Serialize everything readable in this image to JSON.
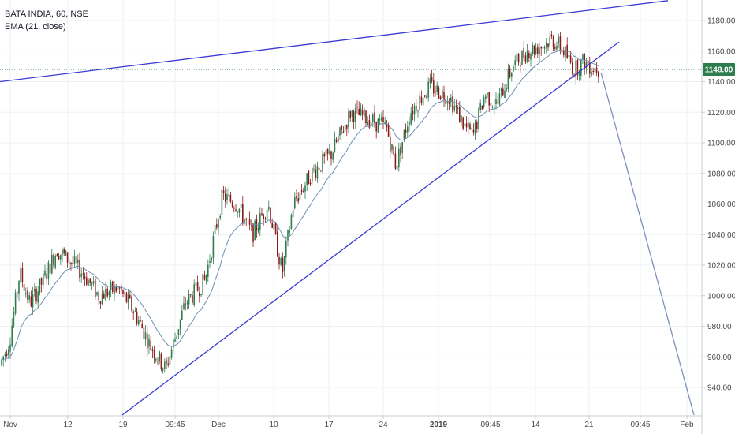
{
  "header": {
    "symbol_line": "BATA INDIA, 60, NSE",
    "indicator_line": "EMA (21, close)"
  },
  "colors": {
    "up": "#2e7d4f",
    "down": "#8b1a1a",
    "ema": "#6f8fb0",
    "trendline": "#3a3ad6",
    "projection": "#7d8fbf",
    "grid": "#edf0f3",
    "last_price_bg": "#2e7d4f"
  },
  "chart_data": {
    "type": "candlestick",
    "symbol": "BATA INDIA",
    "interval": "60",
    "exchange": "NSE",
    "ylim": [
      920,
      1196
    ],
    "y_ticks": [
      940,
      960,
      980,
      1000,
      1020,
      1040,
      1060,
      1080,
      1100,
      1120,
      1140,
      1160,
      1180
    ],
    "last_price": "1148.00",
    "x_ticks": [
      "Nov",
      "12",
      "19",
      "09:45",
      "Dec",
      "10",
      "17",
      "24",
      "2019",
      "09:45",
      "14",
      "21",
      "09:45",
      "Feb"
    ],
    "price_path": [
      [
        0,
        955
      ],
      [
        12,
        970
      ],
      [
        25,
        1015
      ],
      [
        38,
        995
      ],
      [
        55,
        1010
      ],
      [
        72,
        1030
      ],
      [
        90,
        1022
      ],
      [
        105,
        1015
      ],
      [
        125,
        1000
      ],
      [
        150,
        1005
      ],
      [
        170,
        990
      ],
      [
        190,
        968
      ],
      [
        210,
        952
      ],
      [
        235,
        995
      ],
      [
        260,
        1010
      ],
      [
        282,
        1065
      ],
      [
        300,
        1060
      ],
      [
        320,
        1040
      ],
      [
        340,
        1060
      ],
      [
        358,
        1015
      ],
      [
        372,
        1060
      ],
      [
        395,
        1080
      ],
      [
        420,
        1093
      ],
      [
        445,
        1120
      ],
      [
        470,
        1115
      ],
      [
        490,
        1110
      ],
      [
        502,
        1085
      ],
      [
        520,
        1120
      ],
      [
        545,
        1137
      ],
      [
        570,
        1130
      ],
      [
        590,
        1110
      ],
      [
        600,
        1105
      ],
      [
        615,
        1132
      ],
      [
        630,
        1125
      ],
      [
        650,
        1150
      ],
      [
        668,
        1160
      ],
      [
        685,
        1163
      ],
      [
        700,
        1168
      ],
      [
        715,
        1160
      ],
      [
        728,
        1148
      ],
      [
        740,
        1153
      ],
      [
        750,
        1150
      ],
      [
        760,
        1148
      ]
    ],
    "drawings": {
      "upper_trendline": [
        [
          0,
          1140
        ],
        [
          847,
          1193
        ]
      ],
      "lower_trendline": [
        [
          155,
          922
        ],
        [
          785,
          1166
        ]
      ],
      "projection": [
        [
          762,
          1146
        ],
        [
          880,
          922
        ]
      ]
    }
  }
}
